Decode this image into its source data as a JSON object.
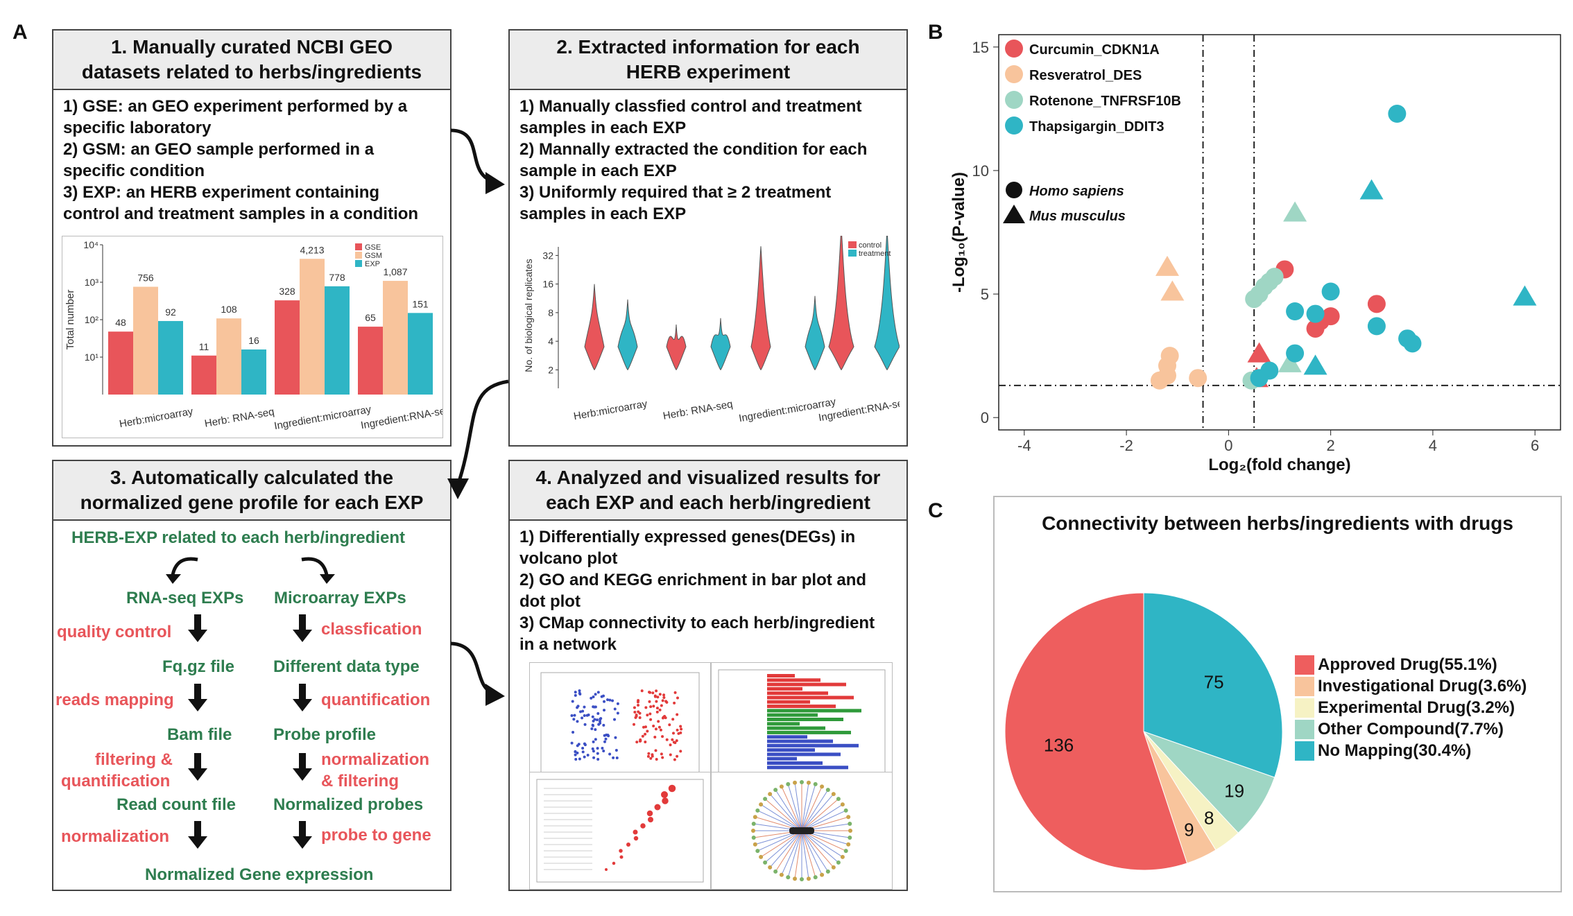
{
  "panels": {
    "a": "A",
    "b": "B",
    "c": "C"
  },
  "box1": {
    "title_l1": "1. Manually curated NCBI GEO",
    "title_l2": "datasets related to herbs/ingredients",
    "lines": [
      "1) GSE: an GEO experiment performed by a",
      "specific laboratory",
      "2) GSM: an GEO sample performed in a",
      "specific condition",
      "3) EXP: an HERB experiment containing",
      "control and treatment samples in a condition"
    ]
  },
  "box2": {
    "title_l1": "2. Extracted information for each",
    "title_l2": "HERB experiment",
    "lines": [
      "1) Manually classfied control and treatment",
      "samples in each EXP",
      "2) Mannally extracted the condition for each",
      "sample in each EXP",
      "3) Uniformly required that ≥ 2 treatment",
      "samples in each EXP"
    ]
  },
  "box3": {
    "title_l1": "3. Automatically calculated the",
    "title_l2": "normalized gene profile for each EXP",
    "top": "HERB-EXP related to each herb/ingredient",
    "left_col": [
      "RNA-seq EXPs",
      "Fq.gz file",
      "Bam file",
      "Read count file"
    ],
    "right_col": [
      "Microarray EXPs",
      "Different data type",
      "Probe profile",
      "Normalized probes"
    ],
    "left_steps": [
      "quality control",
      "reads mapping",
      "filtering &",
      "quantification",
      "normalization"
    ],
    "right_steps": [
      "classfication",
      "quantification",
      "normalization",
      "& filtering",
      "probe to gene"
    ],
    "bottom": "Normalized Gene expression"
  },
  "box4": {
    "title_l1": "4. Analyzed and visualized results for",
    "title_l2": "each EXP and each herb/ingredient",
    "lines": [
      "1) Differentially expressed genes(DEGs) in",
      "volcano plot",
      "2) GO and KEGG enrichment in bar plot and",
      "dot plot",
      "3) CMap connectivity to each herb/ingredient",
      "in a network"
    ]
  },
  "colors": {
    "red": "#e8555a",
    "peach": "#f8c49c",
    "teal": "#2fb5c5",
    "mint": "#9fd6c4",
    "yellow": "#f6f2c4",
    "green": "#2e7d4f"
  },
  "chart_data": [
    {
      "type": "bar",
      "title": "",
      "ylabel": "Total number",
      "yscale": "log",
      "ylim": [
        1,
        10000
      ],
      "yticks": [
        "10¹",
        "10²",
        "10³",
        "10⁴"
      ],
      "categories": [
        "Herb:microarray",
        "Herb: RNA-seq",
        "Ingredient:microarray",
        "Ingredient:RNA-seq"
      ],
      "series": [
        {
          "name": "GSE",
          "values": [
            48,
            11,
            328,
            65
          ],
          "labels": [
            "48",
            "11",
            "328",
            "65"
          ]
        },
        {
          "name": "GSM",
          "values": [
            756,
            108,
            4213,
            1087
          ],
          "labels": [
            "756",
            "108",
            "4,213",
            "1,087"
          ]
        },
        {
          "name": "EXP",
          "values": [
            92,
            16,
            778,
            151
          ],
          "labels": [
            "92",
            "16",
            "778",
            "151"
          ]
        }
      ],
      "legend": "top-right"
    },
    {
      "type": "violin",
      "ylabel": "No. of biological replicates",
      "yticks": [
        "2",
        "4",
        "8",
        "16",
        "32"
      ],
      "categories": [
        "Herb:microarray",
        "Herb: RNA-seq",
        "Ingredient:microarray",
        "Ingredient:RNA-seq"
      ],
      "series": [
        {
          "name": "control"
        },
        {
          "name": "treatment"
        }
      ],
      "legend": "top-right"
    },
    {
      "type": "scatter",
      "xlabel": "Log₂(fold change)",
      "ylabel": "-Log₁₀(P-value)",
      "xlim": [
        -4.5,
        6.5
      ],
      "ylim": [
        -0.5,
        15.5
      ],
      "xticks": [
        -4,
        -2,
        0,
        2,
        4,
        6
      ],
      "yticks": [
        0,
        5,
        10,
        15
      ],
      "vlines": [
        -0.5,
        0.5
      ],
      "hline": 1.3,
      "legend_shapes": [
        "Homo sapiens",
        "Mus musculus"
      ],
      "series": [
        {
          "name": "Curcumin_CDKN1A",
          "color": "#e8555a",
          "points": [
            [
              1.1,
              6.0,
              "c"
            ],
            [
              1.7,
              3.6,
              "c"
            ],
            [
              1.8,
              3.9,
              "c"
            ],
            [
              2.0,
              4.1,
              "c"
            ],
            [
              2.9,
              4.6,
              "c"
            ],
            [
              0.6,
              2.6,
              "t"
            ],
            [
              0.55,
              1.6,
              "t"
            ]
          ]
        },
        {
          "name": "Resveratrol_DES",
          "color": "#f8c49c",
          "points": [
            [
              -1.2,
              6.1,
              "t"
            ],
            [
              -1.1,
              5.1,
              "t"
            ],
            [
              -1.15,
              2.5,
              "c"
            ],
            [
              -1.2,
              2.1,
              "c"
            ],
            [
              -1.35,
              1.5,
              "c"
            ],
            [
              -1.2,
              1.7,
              "c"
            ],
            [
              -0.6,
              1.6,
              "c"
            ]
          ]
        },
        {
          "name": "Rotenone_TNFRSF10B",
          "color": "#9fd6c4",
          "points": [
            [
              1.3,
              8.3,
              "t"
            ],
            [
              0.5,
              4.8,
              "c"
            ],
            [
              0.6,
              5.0,
              "c"
            ],
            [
              0.7,
              5.3,
              "c"
            ],
            [
              0.8,
              5.5,
              "c"
            ],
            [
              0.9,
              5.7,
              "c"
            ],
            [
              1.2,
              2.2,
              "t"
            ],
            [
              0.45,
              1.5,
              "c"
            ]
          ]
        },
        {
          "name": "Thapsigargin_DDIT3",
          "color": "#2fb5c5",
          "points": [
            [
              3.3,
              12.3,
              "c"
            ],
            [
              2.8,
              9.2,
              "t"
            ],
            [
              5.8,
              4.9,
              "t"
            ],
            [
              2.0,
              5.1,
              "c"
            ],
            [
              1.3,
              4.3,
              "c"
            ],
            [
              1.7,
              4.2,
              "c"
            ],
            [
              2.9,
              3.7,
              "c"
            ],
            [
              3.5,
              3.2,
              "c"
            ],
            [
              3.6,
              3.0,
              "c"
            ],
            [
              1.3,
              2.6,
              "c"
            ],
            [
              1.7,
              2.1,
              "t"
            ],
            [
              0.8,
              1.9,
              "c"
            ],
            [
              0.6,
              1.6,
              "c"
            ]
          ]
        }
      ]
    },
    {
      "type": "pie",
      "title": "Connectivity between herbs/ingredients with drugs",
      "categories": [
        "Approved Drug(55.1%)",
        "Investigational Drug(3.6%)",
        "Experimental Drug(3.2%)",
        "Other Compound(7.7%)",
        "No Mapping(30.4%)"
      ],
      "values": [
        136,
        9,
        8,
        19,
        75
      ],
      "labels": [
        "136",
        "9",
        "8",
        "19",
        "75"
      ],
      "colors": [
        "#ee5e5e",
        "#f8c49c",
        "#f6f2c4",
        "#9fd6c4",
        "#2fb5c5"
      ],
      "legend": "right"
    }
  ]
}
